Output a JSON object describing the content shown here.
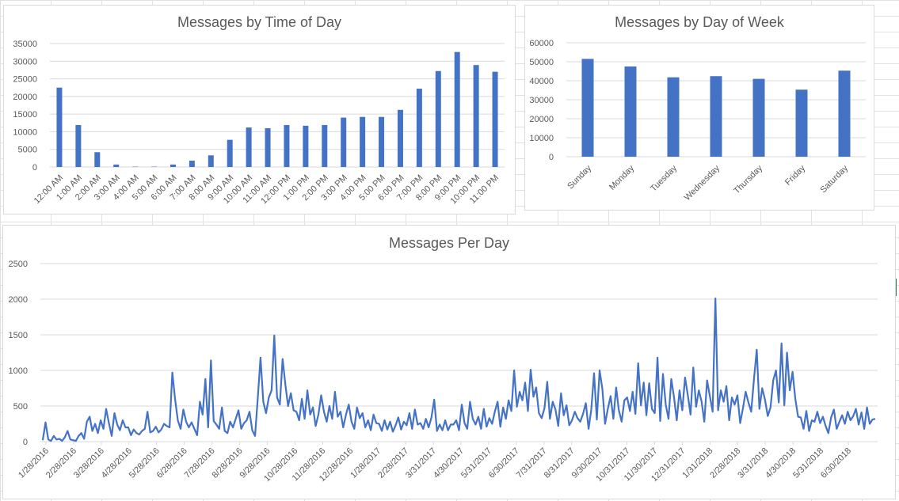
{
  "colors": {
    "bar": "#4472c4",
    "line": "#4472c4",
    "grid": "#d9d9d9",
    "text": "#595959"
  },
  "chart_data": [
    {
      "type": "bar",
      "title": "Messages by Time of Day",
      "categories": [
        "12:00 AM",
        "1:00 AM",
        "2:00 AM",
        "3:00 AM",
        "4:00 AM",
        "5:00 AM",
        "6:00 AM",
        "7:00 AM",
        "8:00 AM",
        "9:00 AM",
        "10:00 AM",
        "11:00 AM",
        "12:00 PM",
        "1:00 PM",
        "2:00 PM",
        "3:00 PM",
        "4:00 PM",
        "5:00 PM",
        "6:00 PM",
        "7:00 PM",
        "8:00 PM",
        "9:00 PM",
        "10:00 PM",
        "11:00 PM"
      ],
      "values": [
        22500,
        11900,
        4200,
        700,
        100,
        100,
        700,
        1800,
        3300,
        7700,
        11200,
        11000,
        11900,
        11700,
        11900,
        14000,
        14200,
        14200,
        16200,
        22200,
        27200,
        32600,
        28900,
        27000
      ],
      "ylim": [
        0,
        35000
      ],
      "yticks": [
        0,
        5000,
        10000,
        15000,
        20000,
        25000,
        30000,
        35000
      ],
      "grid": true
    },
    {
      "type": "bar",
      "title": "Messages by Day of Week",
      "categories": [
        "Sunday",
        "Monday",
        "Tuesday",
        "Wednesday",
        "Thursday",
        "Friday",
        "Saturday"
      ],
      "values": [
        51500,
        47500,
        41800,
        42400,
        41000,
        35300,
        45300
      ],
      "ylim": [
        0,
        60000
      ],
      "yticks": [
        0,
        10000,
        20000,
        30000,
        40000,
        50000,
        60000
      ],
      "grid": true
    },
    {
      "type": "line",
      "title": "Messages Per Day",
      "x_labels": [
        "1/28/2016",
        "2/28/2016",
        "3/28/2016",
        "4/28/2016",
        "5/28/2016",
        "6/28/2016",
        "7/28/2016",
        "8/28/2016",
        "9/28/2016",
        "10/28/2016",
        "11/28/2016",
        "12/28/2016",
        "1/28/2017",
        "2/28/2017",
        "3/31/2017",
        "4/30/2017",
        "5/31/2017",
        "6/30/2017",
        "7/31/2017",
        "8/31/2017",
        "9/30/2017",
        "10/31/2017",
        "11/30/2017",
        "12/31/2017",
        "1/31/2018",
        "2/28/2018",
        "3/31/2018",
        "4/30/2018",
        "5/31/2018",
        "6/30/2018"
      ],
      "ylim": [
        0,
        2500
      ],
      "yticks": [
        0,
        500,
        1000,
        1500,
        2000,
        2500
      ],
      "grid": true,
      "series": [
        {
          "x_start": "1/28/2016",
          "x_end": "7/28/2018",
          "values": [
            20,
            270,
            30,
            10,
            80,
            30,
            40,
            10,
            60,
            150,
            30,
            20,
            10,
            80,
            120,
            40,
            280,
            350,
            150,
            250,
            120,
            300,
            180,
            460,
            260,
            80,
            400,
            240,
            160,
            300,
            200,
            200,
            90,
            170,
            120,
            100,
            150,
            180,
            420,
            130,
            150,
            210,
            130,
            170,
            250,
            220,
            200,
            970,
            600,
            300,
            180,
            450,
            280,
            200,
            270,
            180,
            90,
            560,
            380,
            880,
            200,
            1140,
            290,
            240,
            180,
            480,
            150,
            120,
            280,
            200,
            320,
            440,
            180,
            260,
            300,
            420,
            160,
            80,
            620,
            1180,
            560,
            400,
            620,
            720,
            1490,
            620,
            520,
            1160,
            800,
            500,
            680,
            440,
            420,
            300,
            600,
            320,
            720,
            380,
            480,
            220,
            380,
            650,
            420,
            280,
            500,
            320,
            700,
            350,
            420,
            200,
            380,
            520,
            280,
            180,
            480,
            330,
            400,
            200,
            300,
            160,
            380,
            260,
            250,
            150,
            300,
            170,
            280,
            140,
            230,
            340,
            170,
            280,
            230,
            400,
            180,
            450,
            240,
            260,
            180,
            320,
            200,
            340,
            590,
            150,
            240,
            160,
            300,
            160,
            240,
            240,
            300,
            160,
            520,
            260,
            180,
            560,
            320,
            240,
            350,
            180,
            460,
            210,
            330,
            250,
            420,
            560,
            210,
            480,
            320,
            580,
            430,
            1000,
            490,
            700,
            580,
            830,
            430,
            1010,
            630,
            760,
            400,
            330,
            470,
            840,
            320,
            560,
            450,
            220,
            680,
            370,
            510,
            230,
            300,
            420,
            330,
            280,
            390,
            540,
            180,
            450,
            960,
            310,
            1000,
            740,
            250,
            460,
            640,
            320,
            760,
            440,
            280,
            580,
            620,
            430,
            700,
            390,
            1100,
            510,
            830,
            370,
            820,
            460,
            400,
            1180,
            290,
            950,
            520,
            320,
            880,
            620,
            300,
            720,
            440,
            900,
            650,
            380,
            1040,
            490,
            720,
            560,
            280,
            860,
            640,
            420,
            2010,
            440,
            720,
            560,
            780,
            300,
            620,
            520,
            650,
            260,
            470,
            700,
            550,
            420,
            880,
            1290,
            460,
            750,
            590,
            360,
            480,
            860,
            1000,
            550,
            1380,
            510,
            1250,
            720,
            980,
            600,
            350,
            340,
            180,
            430,
            150,
            300,
            280,
            420,
            260,
            350,
            220,
            120,
            340,
            450,
            180,
            280,
            370,
            250,
            420,
            300,
            360,
            460,
            240,
            410,
            180,
            480,
            250,
            310,
            320
          ]
        }
      ]
    }
  ]
}
